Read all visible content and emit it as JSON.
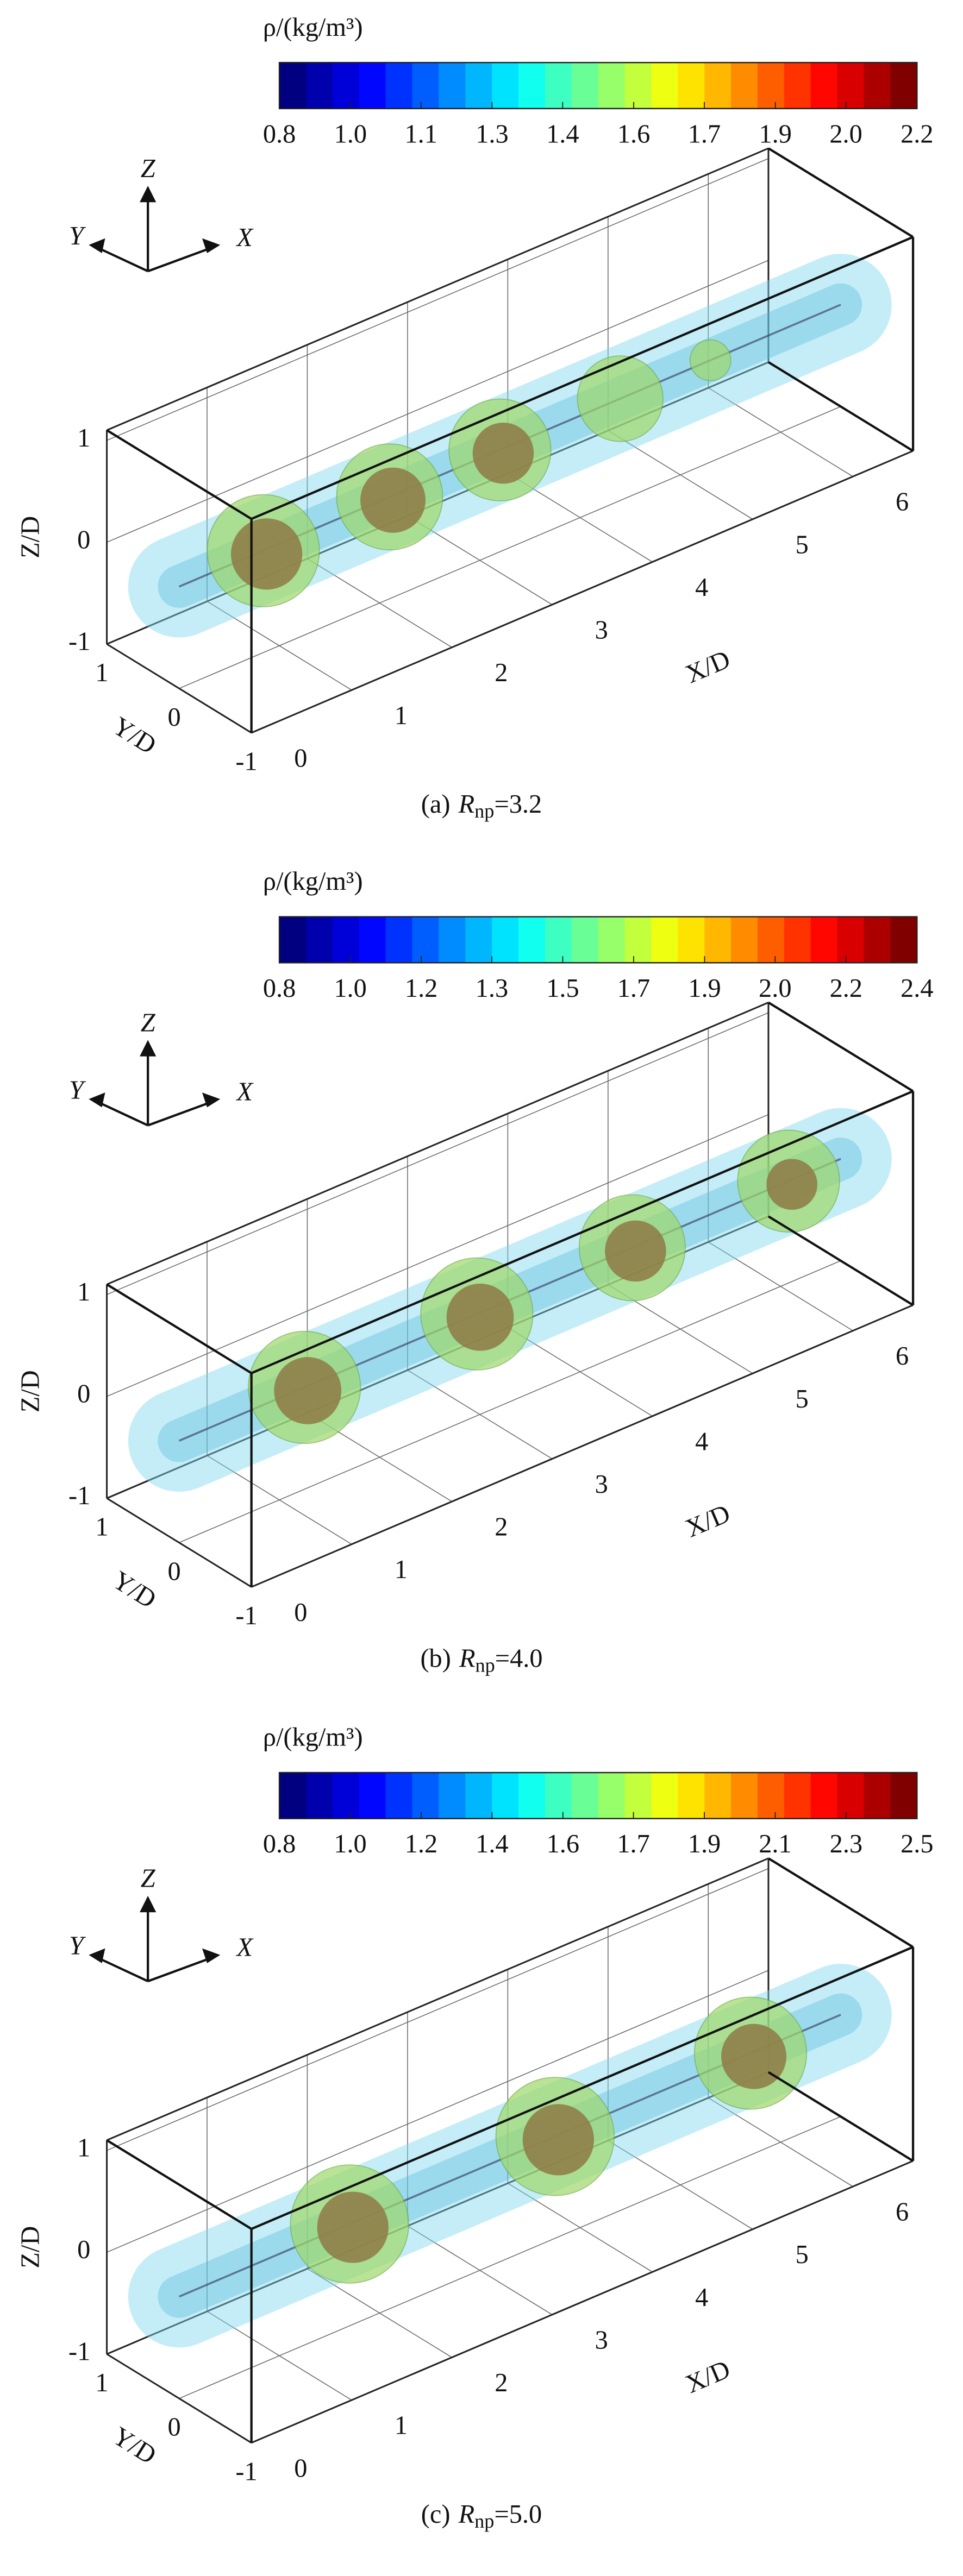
{
  "chart_data": [
    {
      "type": "isosurface3d",
      "colorbar_label": "ρ/(kg/m³)",
      "colormap": "jet",
      "clim": [
        0.8,
        2.2
      ],
      "cticks": [
        0.8,
        {
          "value": 0.956,
          "label": "1.0"
        },
        {
          "value": 1.111,
          "label": "1.1"
        },
        {
          "value": 1.267,
          "label": "1.3"
        },
        {
          "value": 1.422,
          "label": "1.4"
        },
        {
          "value": 1.578,
          "label": "1.6"
        },
        {
          "value": 1.733,
          "label": "1.7"
        },
        {
          "value": 1.889,
          "label": "1.9"
        },
        {
          "value": 2.044,
          "label": "2.0"
        },
        2.2
      ],
      "xlabel": "X/D",
      "ylabel": "Y/D",
      "zlabel": "Z/D",
      "xlim": [
        0,
        6.6
      ],
      "ylim": [
        -1,
        1
      ],
      "zlim": [
        -1,
        1.1
      ],
      "xticks": [
        0,
        1,
        2,
        3,
        4,
        5,
        6
      ],
      "yticks": [
        -1,
        0,
        1
      ],
      "zticks": [
        -1,
        0,
        1
      ],
      "triad": [
        "X",
        "Y",
        "Z"
      ],
      "grid": true,
      "caption": {
        "prefix": "(a)",
        "variable": "R",
        "subscript": "np",
        "suffix": "=3.2"
      },
      "nodules": [
        {
          "x": 0.84,
          "r": 0.55,
          "core": 0.35
        },
        {
          "x": 2.1,
          "r": 0.52,
          "core": 0.32
        },
        {
          "x": 3.2,
          "r": 0.5,
          "core": 0.3
        },
        {
          "x": 4.4,
          "r": 0.42
        },
        {
          "x": 5.3,
          "r": 0.2
        }
      ]
    },
    {
      "type": "isosurface3d",
      "colorbar_label": "ρ/(kg/m³)",
      "colormap": "jet",
      "clim": [
        0.8,
        2.4
      ],
      "cticks": [
        0.8,
        {
          "value": 0.978,
          "label": "1.0"
        },
        {
          "value": 1.156,
          "label": "1.2"
        },
        {
          "value": 1.333,
          "label": "1.3"
        },
        {
          "value": 1.511,
          "label": "1.5"
        },
        {
          "value": 1.689,
          "label": "1.7"
        },
        {
          "value": 1.867,
          "label": "1.9"
        },
        {
          "value": 2.044,
          "label": "2.0"
        },
        {
          "value": 2.222,
          "label": "2.2"
        },
        2.4
      ],
      "xlabel": "X/D",
      "ylabel": "Y/D",
      "zlabel": "Z/D",
      "xlim": [
        0,
        6.6
      ],
      "ylim": [
        -1,
        1
      ],
      "zlim": [
        -1,
        1.1
      ],
      "xticks": [
        0,
        1,
        2,
        3,
        4,
        5,
        6
      ],
      "yticks": [
        -1,
        0,
        1
      ],
      "zticks": [
        -1,
        0,
        1
      ],
      "triad": [
        "X",
        "Y",
        "Z"
      ],
      "grid": true,
      "caption": {
        "prefix": "(b)",
        "variable": "R",
        "subscript": "np",
        "suffix": "=4.0"
      },
      "nodules": [
        {
          "x": 1.25,
          "r": 0.55,
          "core": 0.33
        },
        {
          "x": 2.97,
          "r": 0.55,
          "core": 0.33
        },
        {
          "x": 4.52,
          "r": 0.52,
          "core": 0.3
        },
        {
          "x": 6.08,
          "r": 0.5,
          "core": 0.25
        }
      ]
    },
    {
      "type": "isosurface3d",
      "colorbar_label": "ρ/(kg/m³)",
      "colormap": "jet",
      "clim": [
        0.8,
        2.5
      ],
      "cticks": [
        0.8,
        {
          "value": 0.989,
          "label": "1.0"
        },
        {
          "value": 1.178,
          "label": "1.2"
        },
        {
          "value": 1.367,
          "label": "1.4"
        },
        {
          "value": 1.556,
          "label": "1.6"
        },
        {
          "value": 1.744,
          "label": "1.7"
        },
        {
          "value": 1.933,
          "label": "1.9"
        },
        {
          "value": 2.122,
          "label": "2.1"
        },
        {
          "value": 2.311,
          "label": "2.3"
        },
        2.5
      ],
      "xlabel": "X/D",
      "ylabel": "Y/D",
      "zlabel": "Z/D",
      "xlim": [
        0,
        6.6
      ],
      "ylim": [
        -1,
        1
      ],
      "zlim": [
        -1,
        1.1
      ],
      "xticks": [
        0,
        1,
        2,
        3,
        4,
        5,
        6
      ],
      "yticks": [
        -1,
        0,
        1
      ],
      "zticks": [
        -1,
        0,
        1
      ],
      "triad": [
        "X",
        "Y",
        "Z"
      ],
      "grid": true,
      "caption": {
        "prefix": "(c)",
        "variable": "R",
        "subscript": "np",
        "suffix": "=5.0"
      },
      "nodules": [
        {
          "x": 1.7,
          "r": 0.58,
          "core": 0.35
        },
        {
          "x": 3.75,
          "r": 0.58,
          "core": 0.35
        },
        {
          "x": 5.7,
          "r": 0.55,
          "core": 0.32
        }
      ]
    }
  ]
}
